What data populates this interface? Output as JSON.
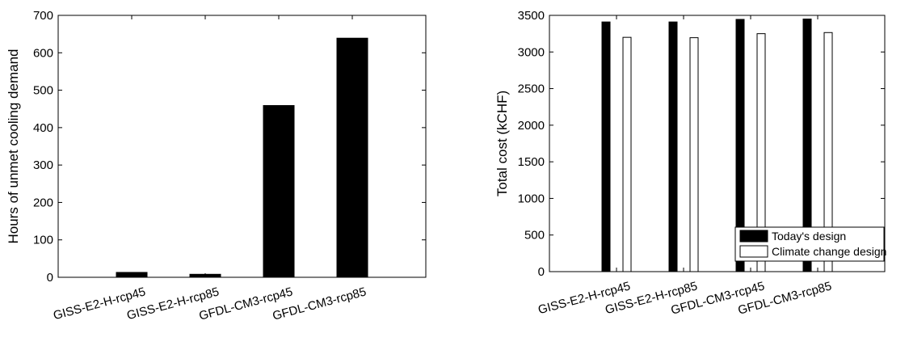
{
  "chart_data": [
    {
      "type": "bar",
      "title": "",
      "xlabel": "",
      "ylabel": "Hours of unmet cooling demand",
      "categories": [
        "GISS-E2-H-rcp45",
        "GISS-E2-H-rcp85",
        "GFDL-CM3-rcp45",
        "GFDL-CM3-rcp85"
      ],
      "values": [
        13,
        8,
        459,
        639
      ],
      "ylim": [
        0,
        700
      ],
      "yticks": [
        0,
        100,
        200,
        300,
        400,
        500,
        600,
        700
      ],
      "grid": false,
      "bar_color": "#000000"
    },
    {
      "type": "bar",
      "title": "",
      "xlabel": "",
      "ylabel": "Total cost (kCHF)",
      "categories": [
        "GISS-E2-H-rcp45",
        "GISS-E2-H-rcp85",
        "GFDL-CM3-rcp45",
        "GFDL-CM3-rcp85"
      ],
      "series": [
        {
          "name": "Today's design",
          "values": [
            3410,
            3410,
            3445,
            3450
          ],
          "color": "#000000"
        },
        {
          "name": "Climate change design",
          "values": [
            3200,
            3195,
            3250,
            3265
          ],
          "color": "#ffffff"
        }
      ],
      "ylim": [
        0,
        3500
      ],
      "yticks": [
        0,
        500,
        1000,
        1500,
        2000,
        2500,
        3000,
        3500
      ],
      "grid": false,
      "legend": "bottom-right"
    }
  ]
}
